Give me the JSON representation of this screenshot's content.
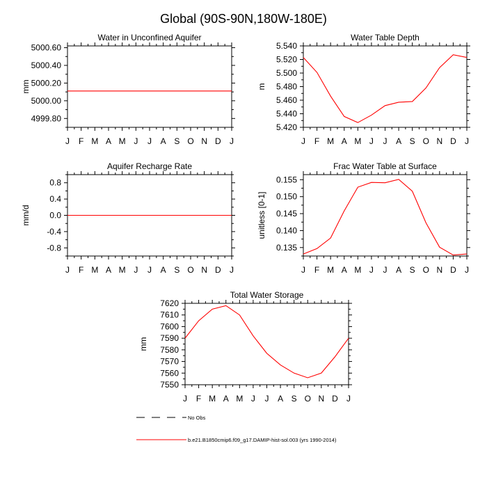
{
  "figure": {
    "title": "Global (90S-90N,180W-180E)",
    "legend": {
      "obs_label": "No Obs",
      "model_label": "b.e21.B1850cmip6.f09_g17.DAMIP-hist-sol.003 (yrs 1990-2014)"
    },
    "colors": {
      "model": "#ff0000",
      "obs": "#000000",
      "axis": "#000000"
    }
  },
  "chart_data": [
    {
      "type": "line",
      "title": "Water in Unconfined Aquifer",
      "ylabel": "mm",
      "xlabel": "",
      "categories": [
        "J",
        "F",
        "M",
        "A",
        "M",
        "J",
        "J",
        "A",
        "S",
        "O",
        "N",
        "D",
        "J"
      ],
      "ylim": [
        4999.7,
        5000.62
      ],
      "yticks": [
        4999.8,
        5000.0,
        5000.2,
        5000.4,
        5000.6
      ],
      "ytick_labels": [
        "4999.80",
        "5000.00",
        "5000.20",
        "5000.40",
        "5000.60"
      ],
      "series": [
        {
          "values": [
            5000.11,
            5000.11,
            5000.11,
            5000.11,
            5000.11,
            5000.11,
            5000.11,
            5000.11,
            5000.11,
            5000.11,
            5000.11,
            5000.11,
            5000.11
          ]
        }
      ]
    },
    {
      "type": "line",
      "title": "Water Table Depth",
      "ylabel": "m",
      "xlabel": "",
      "categories": [
        "J",
        "F",
        "M",
        "A",
        "M",
        "J",
        "J",
        "A",
        "S",
        "O",
        "N",
        "D",
        "J"
      ],
      "ylim": [
        5.42,
        5.54
      ],
      "yticks": [
        5.42,
        5.44,
        5.46,
        5.48,
        5.5,
        5.52,
        5.54
      ],
      "ytick_labels": [
        "5.420",
        "5.440",
        "5.460",
        "5.480",
        "5.500",
        "5.520",
        "5.540"
      ],
      "series": [
        {
          "values": [
            5.523,
            5.501,
            5.466,
            5.436,
            5.427,
            5.438,
            5.452,
            5.457,
            5.458,
            5.478,
            5.508,
            5.527,
            5.523
          ]
        }
      ]
    },
    {
      "type": "line",
      "title": "Aquifer Recharge Rate",
      "ylabel": "mm/d",
      "xlabel": "",
      "categories": [
        "J",
        "F",
        "M",
        "A",
        "M",
        "J",
        "J",
        "A",
        "S",
        "O",
        "N",
        "D",
        "J"
      ],
      "ylim": [
        -1.0,
        1.0
      ],
      "yticks": [
        -0.8,
        -0.4,
        0.0,
        0.4,
        0.8
      ],
      "ytick_labels": [
        "-0.8",
        "-0.4",
        "0.0",
        "0.4",
        "0.8"
      ],
      "series": [
        {
          "values": [
            0,
            0,
            0,
            0,
            0,
            0,
            0,
            0,
            0,
            0,
            0,
            0,
            0
          ]
        }
      ]
    },
    {
      "type": "line",
      "title": "Frac Water Table at Surface",
      "ylabel": "unitless [0-1]",
      "xlabel": "",
      "categories": [
        "J",
        "F",
        "M",
        "A",
        "M",
        "J",
        "J",
        "A",
        "S",
        "O",
        "N",
        "D",
        "J"
      ],
      "ylim": [
        0.1325,
        0.1565
      ],
      "yticks": [
        0.135,
        0.14,
        0.145,
        0.15,
        0.155
      ],
      "ytick_labels": [
        "0.135",
        "0.140",
        "0.145",
        "0.150",
        "0.155"
      ],
      "series": [
        {
          "values": [
            0.1331,
            0.1347,
            0.1378,
            0.1458,
            0.1528,
            0.1542,
            0.1541,
            0.1551,
            0.1516,
            0.1423,
            0.1351,
            0.1328,
            0.1331
          ]
        }
      ]
    },
    {
      "type": "line",
      "title": "Total Water Storage",
      "ylabel": "mm",
      "xlabel": "",
      "categories": [
        "J",
        "F",
        "M",
        "A",
        "M",
        "J",
        "J",
        "A",
        "S",
        "O",
        "N",
        "D",
        "J"
      ],
      "ylim": [
        7550,
        7620
      ],
      "yticks": [
        7550,
        7560,
        7570,
        7580,
        7590,
        7600,
        7610,
        7620
      ],
      "ytick_labels": [
        "7550",
        "7560",
        "7570",
        "7580",
        "7590",
        "7600",
        "7610",
        "7620"
      ],
      "series": [
        {
          "values": [
            7590,
            7605,
            7615,
            7618,
            7610,
            7592,
            7577,
            7567,
            7560,
            7556,
            7560,
            7574,
            7590
          ]
        }
      ]
    }
  ]
}
